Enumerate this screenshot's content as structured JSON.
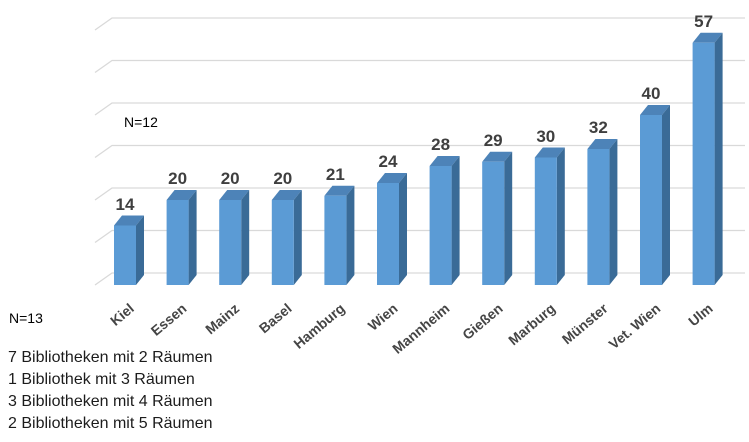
{
  "chart_data": {
    "type": "bar",
    "style": "3d-column",
    "title": "",
    "xlabel": "",
    "ylabel": "",
    "categories": [
      "Kiel",
      "Essen",
      "Mainz",
      "Basel",
      "Hamburg",
      "Wien",
      "Mannheim",
      "Gießen",
      "Marburg",
      "Münster",
      "Vet. Wien",
      "Ulm"
    ],
    "values": [
      14,
      20,
      20,
      20,
      21,
      24,
      28,
      29,
      30,
      32,
      40,
      57
    ],
    "data_labels_shown": true,
    "ylim": [
      0,
      60
    ],
    "grid_step": 10,
    "grid": true,
    "legend": false,
    "y_tick_labels_shown": false,
    "colors": {
      "bar_front": "#5B9BD5",
      "bar_top": "#4D83B8",
      "bar_side": "#3A6B97",
      "gridline": "#D9D9D9",
      "data_label": "#3F3F3F",
      "axis_label": "#454545"
    }
  },
  "annotations": {
    "n12": "N=12",
    "n13": "N=13"
  },
  "notes": [
    "7 Bibliotheken mit 2 Räumen",
    "1 Bibliothek mit 3 Räumen",
    "3 Bibliotheken mit 4 Räumen",
    "2 Bibliotheken mit 5 Räumen"
  ]
}
